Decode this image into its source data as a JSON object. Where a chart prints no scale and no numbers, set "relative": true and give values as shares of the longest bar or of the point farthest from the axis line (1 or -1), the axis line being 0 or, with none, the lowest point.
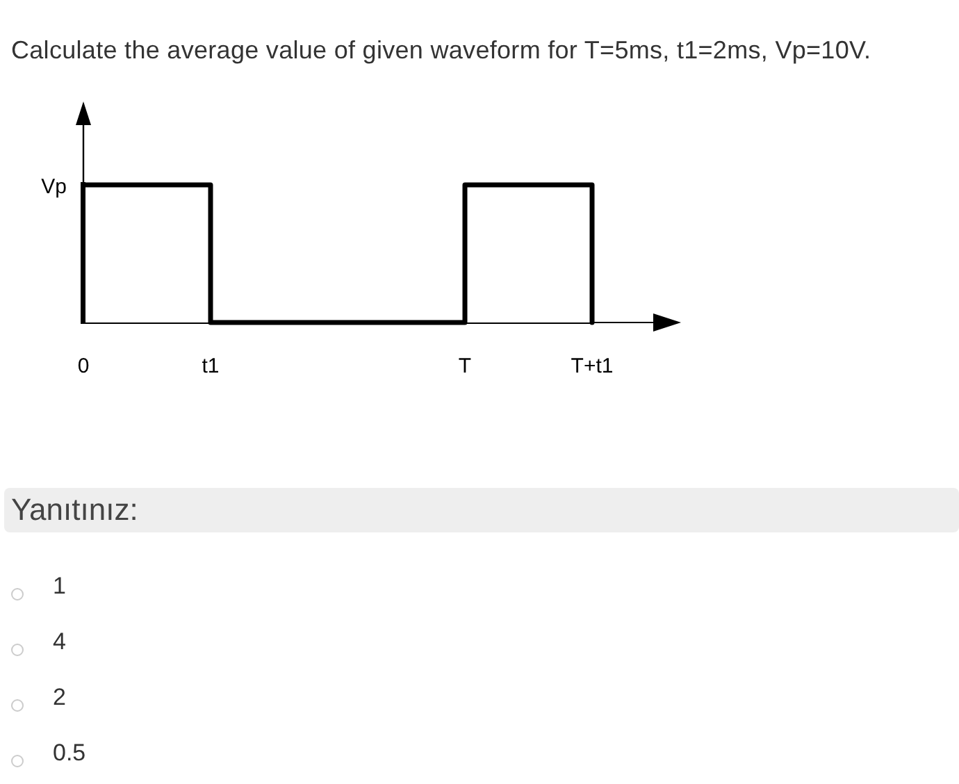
{
  "chart_data": {
    "type": "step",
    "title": "Calculate the average value of given waveform for T=5ms, t1=2ms, Vp=10V.",
    "categories": [
      "0",
      "t1",
      null,
      "T",
      "T+t1"
    ],
    "values": [
      1,
      0,
      0,
      1,
      0
    ],
    "color": "#000000",
    "relative": true,
    "annotations": [
      {
        "text": "Vp",
        "x": "0",
        "y": 1
      },
      "Yanıtınız:",
      "1",
      "4",
      "2",
      "0.5"
    ]
  }
}
